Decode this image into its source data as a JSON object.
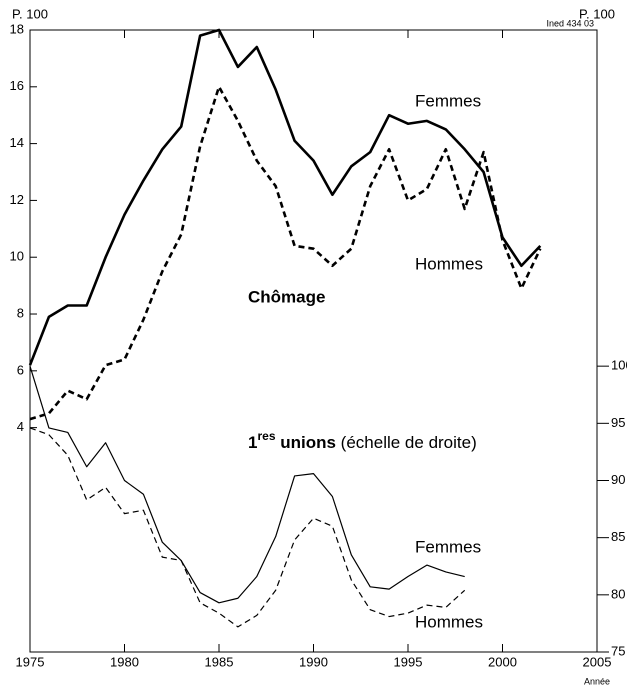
{
  "chart_data": {
    "type": "line",
    "y_label": "P. 100",
    "y2_label": "P. 100",
    "source": "Ined 434 03",
    "x_label": "Année",
    "annotations": [
      "Chômage",
      "1",
      "res",
      " unions",
      " (échelle de droite)"
    ],
    "x": [
      1975,
      1976,
      1977,
      1978,
      1979,
      1980,
      1981,
      1982,
      1983,
      1984,
      1985,
      1986,
      1987,
      1988,
      1989,
      1990,
      1991,
      1992,
      1993,
      1994,
      1995,
      1996,
      1997,
      1998,
      1999,
      2000,
      2001,
      2002
    ],
    "xlim": [
      1975,
      2005
    ],
    "xticks": [
      1975,
      1980,
      1985,
      1990,
      1995,
      2000,
      2005
    ],
    "ylim": [
      -3.9,
      18
    ],
    "yticks": [
      4,
      6,
      8,
      10,
      12,
      14,
      16,
      18
    ],
    "y2lim": [
      75,
      129.4
    ],
    "y2ticks": [
      75,
      80,
      85,
      90,
      95,
      100
    ],
    "series": [
      {
        "name": "Femmes",
        "color": "#000",
        "style": "solid",
        "width": 2.6,
        "axis": "y",
        "values": [
          6.2,
          7.9,
          8.3,
          8.3,
          10.0,
          11.5,
          12.7,
          13.8,
          14.6,
          17.8,
          18.0,
          16.7,
          17.4,
          15.9,
          14.1,
          13.4,
          12.2,
          13.2,
          13.7,
          15.0,
          14.7,
          14.8,
          14.5,
          13.8,
          13.0,
          10.7,
          9.7,
          10.4
        ]
      },
      {
        "name": "Hommes",
        "color": "#000",
        "style": "dashed",
        "width": 2.6,
        "axis": "y",
        "values": [
          4.3,
          4.5,
          5.3,
          5.0,
          6.2,
          6.4,
          7.8,
          9.5,
          10.8,
          13.9,
          16.0,
          14.8,
          13.4,
          12.5,
          10.4,
          10.3,
          9.7,
          10.3,
          12.5,
          13.8,
          12.0,
          12.4,
          13.8,
          11.7,
          13.7,
          10.6,
          8.9,
          10.3
        ]
      },
      {
        "name": "Femmes",
        "color": "#000",
        "style": "solid",
        "width": 1.2,
        "axis": "y2",
        "values": [
          100,
          94.6,
          94.2,
          91.2,
          93.3,
          90.0,
          88.8,
          84.6,
          83.0,
          80.2,
          79.3,
          79.7,
          81.6,
          85.1,
          90.4,
          90.6,
          88.6,
          83.5,
          80.7,
          80.5,
          81.6,
          82.6,
          82.0,
          81.6,
          null,
          null,
          null,
          null
        ]
      },
      {
        "name": "Hommes",
        "color": "#000",
        "style": "dashed",
        "width": 1.2,
        "axis": "y2",
        "values": [
          94.6,
          94.0,
          92.2,
          88.3,
          89.4,
          87.1,
          87.4,
          83.3,
          83.0,
          79.3,
          78.4,
          77.2,
          78.2,
          80.4,
          84.8,
          86.7,
          86.0,
          81.3,
          78.7,
          78.1,
          78.4,
          79.1,
          78.9,
          80.4,
          null,
          null,
          null,
          null
        ]
      }
    ]
  }
}
